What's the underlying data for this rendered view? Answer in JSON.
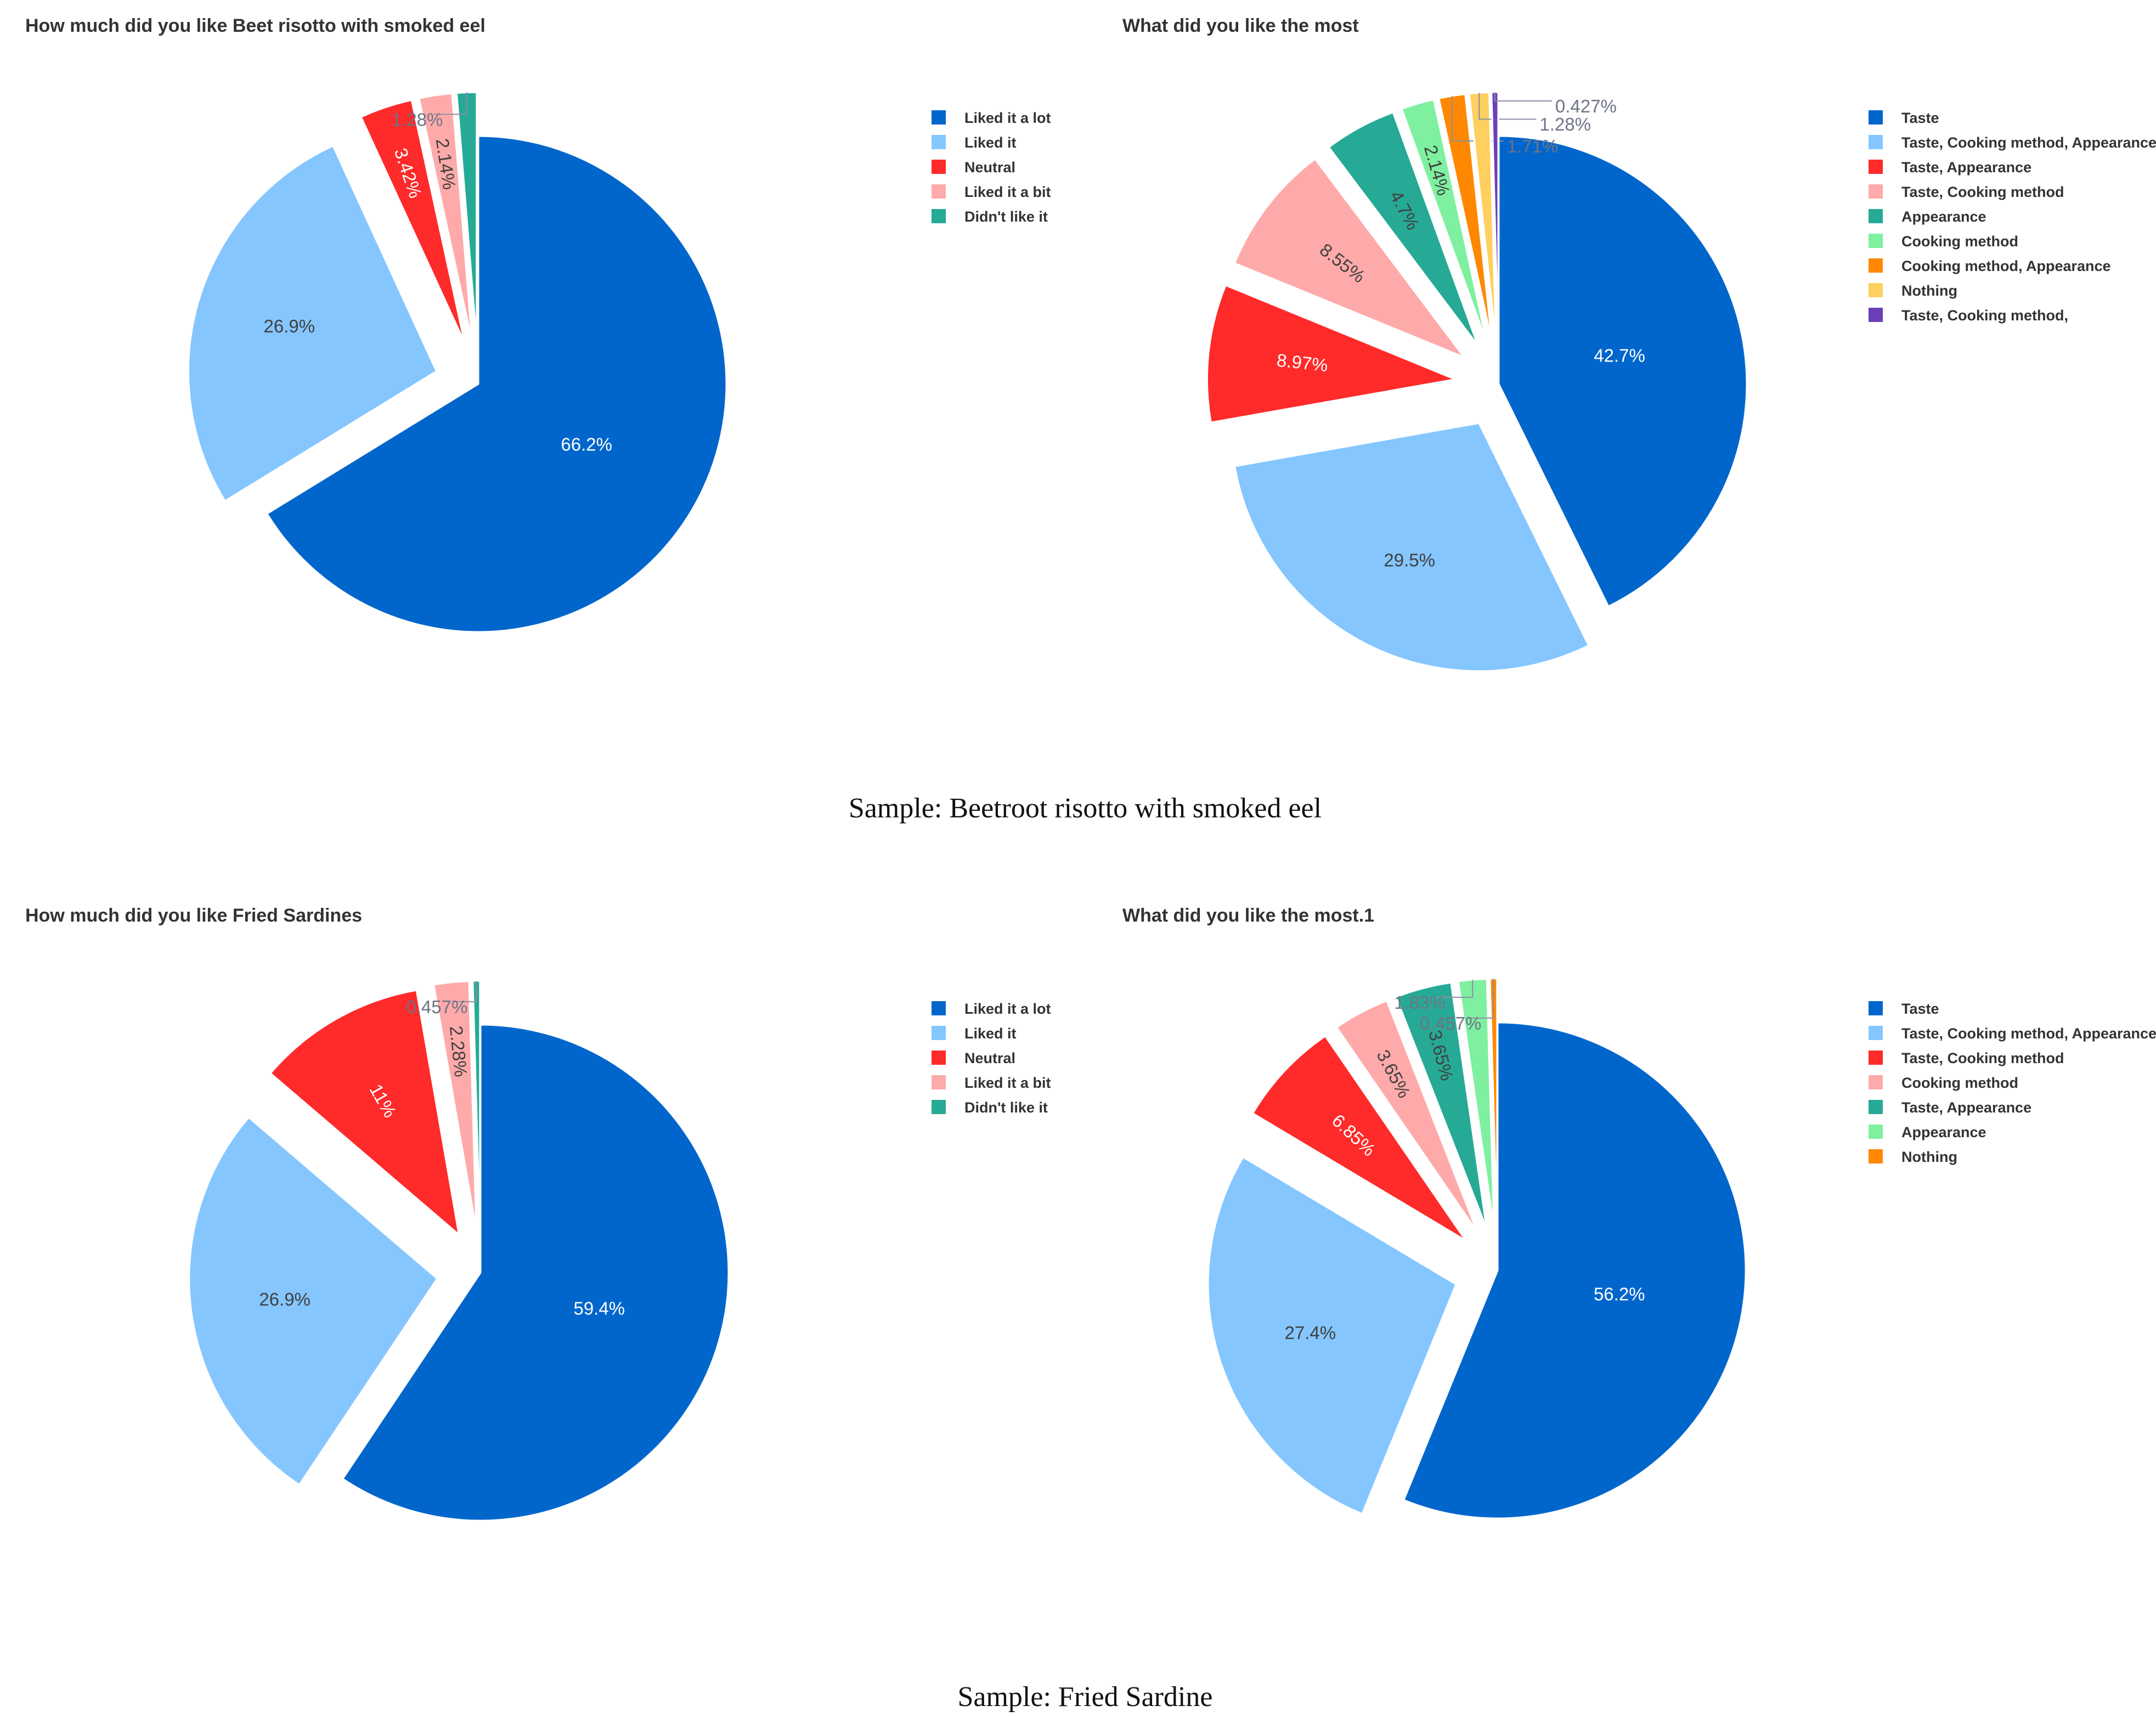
{
  "chart_data": [
    {
      "type": "pie",
      "title": "How much did you like Beet risotto with smoked eel",
      "categories": [
        "Liked it a lot",
        "Liked it",
        "Neutral",
        "Liked it a bit",
        "Didn't like it"
      ],
      "values": [
        66.2,
        26.9,
        3.42,
        2.14,
        1.28
      ],
      "labels": [
        "66.2%",
        "26.9%",
        "3.42%",
        "2.14%",
        "1.28%"
      ],
      "colors": [
        "#0066CC",
        "#85C6FF",
        "#FF2A2A",
        "#FFAAAA",
        "#26AA96"
      ],
      "legend_position": "right"
    },
    {
      "type": "pie",
      "title": "What did you like the most",
      "categories": [
        "Taste",
        "Taste, Cooking method, Appearance",
        "Taste, Appearance",
        "Taste, Cooking method",
        "Appearance",
        "Cooking method",
        "Cooking method, Appearance",
        "Nothing",
        "Taste, Cooking method,"
      ],
      "values": [
        42.7,
        29.5,
        8.97,
        8.55,
        4.7,
        2.14,
        1.71,
        1.28,
        0.427
      ],
      "labels": [
        "42.7%",
        "29.5%",
        "8.97%",
        "8.55%",
        "4.7%",
        "2.14%",
        "1.71%",
        "1.28%",
        "0.427%"
      ],
      "colors": [
        "#0066CC",
        "#85C6FF",
        "#FF2A2A",
        "#FFAAAA",
        "#26AA96",
        "#7FF0A0",
        "#FF8800",
        "#FFD060",
        "#6A3FB8"
      ],
      "legend_position": "right"
    },
    {
      "type": "pie",
      "title": "How much did you like Fried Sardines",
      "categories": [
        "Liked it a lot",
        "Liked it",
        "Neutral",
        "Liked it a bit",
        "Didn't like it"
      ],
      "values": [
        59.4,
        26.9,
        11,
        2.28,
        0.457
      ],
      "labels": [
        "59.4%",
        "26.9%",
        "11%",
        "2.28%",
        "0.457%"
      ],
      "colors": [
        "#0066CC",
        "#85C6FF",
        "#FF2A2A",
        "#FFAAAA",
        "#26AA96"
      ],
      "legend_position": "right"
    },
    {
      "type": "pie",
      "title": "What did you like the most.1",
      "categories": [
        "Taste",
        "Taste, Cooking method, Appearance",
        "Taste, Cooking method",
        "Cooking method",
        "Taste, Appearance",
        "Appearance",
        "Nothing"
      ],
      "values": [
        56.2,
        27.4,
        6.85,
        3.65,
        3.65,
        1.83,
        0.457
      ],
      "labels": [
        "56.2%",
        "27.4%",
        "6.85%",
        "3.65%",
        "3.65%",
        "1.83%",
        "0.457%"
      ],
      "colors": [
        "#0066CC",
        "#85C6FF",
        "#FF2A2A",
        "#FFAAAA",
        "#26AA96",
        "#7FF0A0",
        "#FF8800"
      ],
      "legend_position": "right"
    }
  ],
  "captions": [
    "Sample: Beetroot risotto with smoked eel",
    "Sample: Fried Sardine"
  ]
}
